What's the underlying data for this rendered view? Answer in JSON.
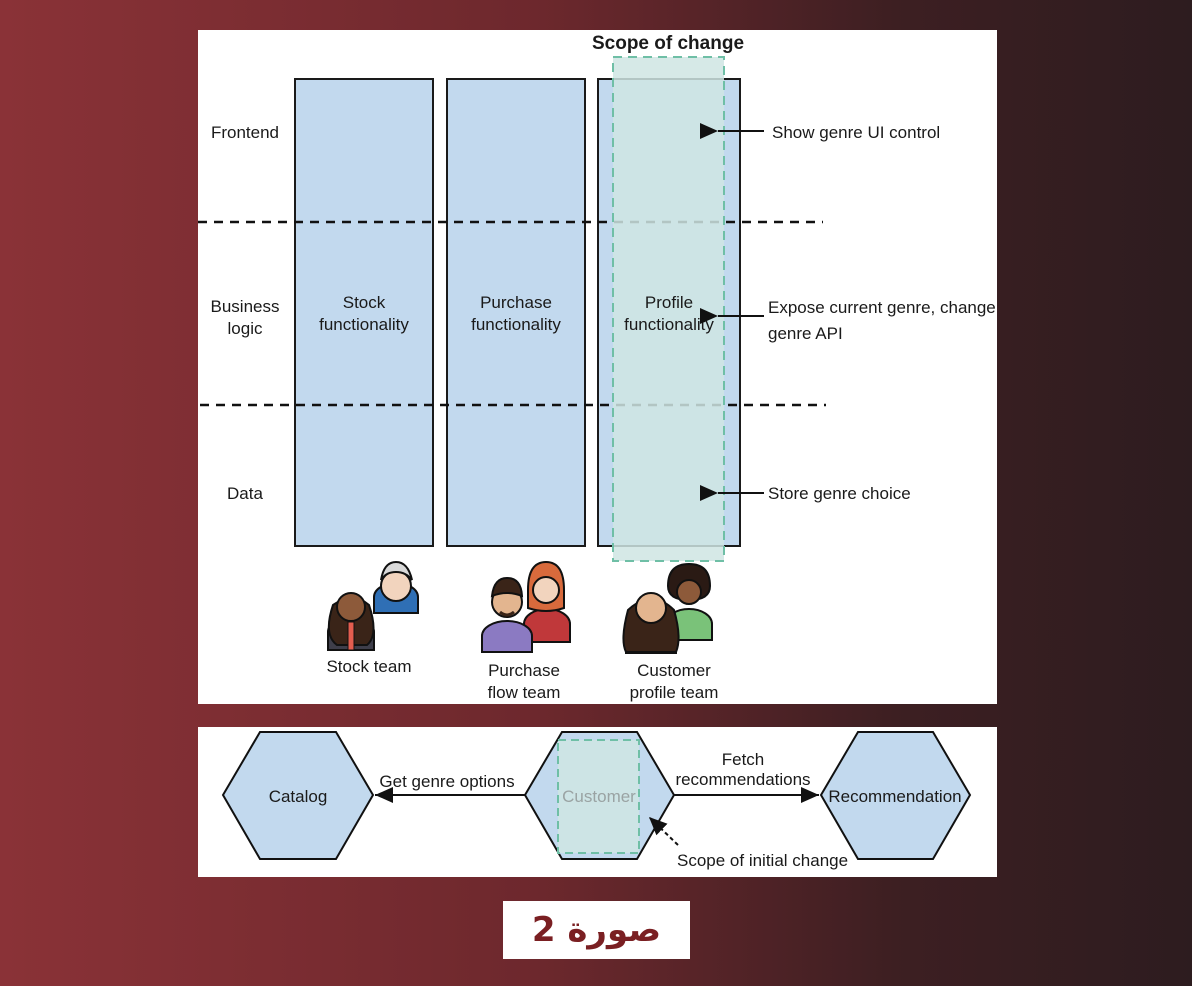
{
  "top_diagram": {
    "scope_title": "Scope of change",
    "layers": [
      "Frontend",
      [
        "Business",
        "logic"
      ],
      "Data"
    ],
    "columns": [
      [
        "Stock",
        "functionality"
      ],
      [
        "Purchase",
        "functionality"
      ],
      [
        "Profile",
        "functionality"
      ]
    ],
    "annotations": [
      [
        "Show genre UI control"
      ],
      [
        "Expose current genre, change",
        "genre API"
      ],
      [
        "Store genre choice"
      ]
    ],
    "teams": [
      [
        "Stock team"
      ],
      [
        "Purchase",
        "flow  team"
      ],
      [
        "Customer",
        "profile team"
      ]
    ],
    "colors": {
      "column_fill": "#c2d9ee",
      "scope_fill": "#cfe5e3",
      "scope_border": "#6fbfa6"
    }
  },
  "bottom_diagram": {
    "nodes": [
      "Catalog",
      "Customer",
      "Recommendation"
    ],
    "edge_left_label": "Get genre options",
    "edge_right_label": [
      "Fetch",
      "recommendations"
    ],
    "scope_note": "Scope of initial change"
  },
  "caption": "صورة 2"
}
